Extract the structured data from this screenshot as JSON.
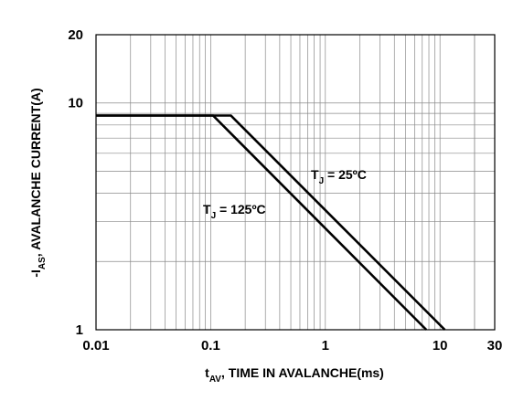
{
  "chart_data": {
    "type": "line",
    "title": "",
    "x_scale": "log",
    "y_scale": "log",
    "xlim": [
      0.01,
      30
    ],
    "ylim": [
      1,
      20
    ],
    "grid": true,
    "xlabel": {
      "main": "t",
      "sub": "AV",
      "rest": ", TIME IN AVALANCHE(ms)"
    },
    "ylabel": {
      "main": "-I",
      "sub": "AS",
      "rest": ", AVALANCHE CURRENT(A)"
    },
    "x_ticks": [
      {
        "value": 0.01,
        "label": "0.01"
      },
      {
        "value": 0.1,
        "label": "0.1"
      },
      {
        "value": 1,
        "label": "1"
      },
      {
        "value": 10,
        "label": "10"
      },
      {
        "value": 30,
        "label": "30"
      }
    ],
    "y_ticks": [
      {
        "value": 1,
        "label": "1"
      },
      {
        "value": 10,
        "label": "10"
      },
      {
        "value": 20,
        "label": "20"
      }
    ],
    "series": [
      {
        "name": "TJ = 25°C",
        "label": {
          "main": "T",
          "sub": "J",
          "rest": " = 25ºC"
        },
        "points": [
          [
            0.01,
            8.8
          ],
          [
            0.15,
            8.8
          ],
          [
            11.0,
            1.0
          ]
        ]
      },
      {
        "name": "TJ = 125°C",
        "label": {
          "main": "T",
          "sub": "J",
          "rest": " = 125ºC"
        },
        "points": [
          [
            0.01,
            8.8
          ],
          [
            0.105,
            8.8
          ],
          [
            7.6,
            1.0
          ]
        ]
      }
    ]
  }
}
